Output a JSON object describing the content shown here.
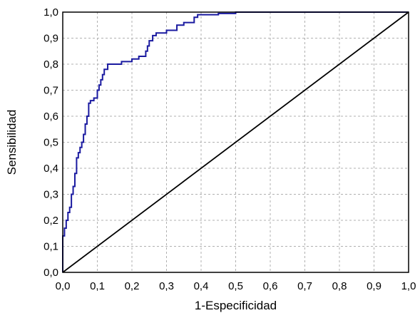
{
  "chart_data": {
    "type": "line",
    "title": "",
    "xlabel": "1-Especificidad",
    "ylabel": "Sensibilidad",
    "xlim": [
      0,
      1
    ],
    "ylim": [
      0,
      1
    ],
    "grid": true,
    "x_ticks": [
      "0,0",
      "0,1",
      "0,2",
      "0,3",
      "0,4",
      "0,5",
      "0,6",
      "0,7",
      "0,8",
      "0,9",
      "1,0"
    ],
    "y_ticks": [
      "0,0",
      "0,1",
      "0,2",
      "0,3",
      "0,4",
      "0,5",
      "0,6",
      "0,7",
      "0,8",
      "0,9",
      "1,0"
    ],
    "series": [
      {
        "color": "#1a1aa0",
        "style": "step",
        "points": [
          [
            0.0,
            0.0
          ],
          [
            0.0,
            0.14
          ],
          [
            0.005,
            0.14
          ],
          [
            0.005,
            0.17
          ],
          [
            0.01,
            0.17
          ],
          [
            0.01,
            0.2
          ],
          [
            0.015,
            0.2
          ],
          [
            0.015,
            0.23
          ],
          [
            0.02,
            0.23
          ],
          [
            0.02,
            0.25
          ],
          [
            0.025,
            0.25
          ],
          [
            0.025,
            0.3
          ],
          [
            0.03,
            0.3
          ],
          [
            0.03,
            0.33
          ],
          [
            0.035,
            0.33
          ],
          [
            0.035,
            0.38
          ],
          [
            0.04,
            0.38
          ],
          [
            0.04,
            0.44
          ],
          [
            0.045,
            0.44
          ],
          [
            0.045,
            0.46
          ],
          [
            0.05,
            0.46
          ],
          [
            0.05,
            0.48
          ],
          [
            0.055,
            0.48
          ],
          [
            0.055,
            0.5
          ],
          [
            0.06,
            0.5
          ],
          [
            0.06,
            0.53
          ],
          [
            0.065,
            0.53
          ],
          [
            0.065,
            0.57
          ],
          [
            0.07,
            0.57
          ],
          [
            0.07,
            0.6
          ],
          [
            0.075,
            0.6
          ],
          [
            0.075,
            0.65
          ],
          [
            0.08,
            0.65
          ],
          [
            0.08,
            0.66
          ],
          [
            0.09,
            0.66
          ],
          [
            0.09,
            0.67
          ],
          [
            0.1,
            0.67
          ],
          [
            0.1,
            0.7
          ],
          [
            0.105,
            0.7
          ],
          [
            0.105,
            0.72
          ],
          [
            0.11,
            0.72
          ],
          [
            0.11,
            0.74
          ],
          [
            0.115,
            0.74
          ],
          [
            0.115,
            0.76
          ],
          [
            0.12,
            0.76
          ],
          [
            0.12,
            0.78
          ],
          [
            0.13,
            0.78
          ],
          [
            0.13,
            0.8
          ],
          [
            0.17,
            0.8
          ],
          [
            0.17,
            0.81
          ],
          [
            0.2,
            0.81
          ],
          [
            0.2,
            0.82
          ],
          [
            0.22,
            0.82
          ],
          [
            0.22,
            0.83
          ],
          [
            0.24,
            0.83
          ],
          [
            0.24,
            0.85
          ],
          [
            0.245,
            0.85
          ],
          [
            0.245,
            0.87
          ],
          [
            0.25,
            0.87
          ],
          [
            0.25,
            0.89
          ],
          [
            0.26,
            0.89
          ],
          [
            0.26,
            0.91
          ],
          [
            0.27,
            0.91
          ],
          [
            0.27,
            0.92
          ],
          [
            0.3,
            0.92
          ],
          [
            0.3,
            0.93
          ],
          [
            0.33,
            0.93
          ],
          [
            0.33,
            0.95
          ],
          [
            0.35,
            0.95
          ],
          [
            0.35,
            0.96
          ],
          [
            0.38,
            0.96
          ],
          [
            0.38,
            0.98
          ],
          [
            0.39,
            0.98
          ],
          [
            0.39,
            0.99
          ],
          [
            0.45,
            0.99
          ],
          [
            0.45,
            0.995
          ],
          [
            0.5,
            0.995
          ],
          [
            0.5,
            1.0
          ],
          [
            1.0,
            1.0
          ]
        ]
      },
      {
        "color": "#000000",
        "style": "line",
        "points": [
          [
            0.0,
            0.0
          ],
          [
            1.0,
            1.0
          ]
        ]
      }
    ]
  }
}
